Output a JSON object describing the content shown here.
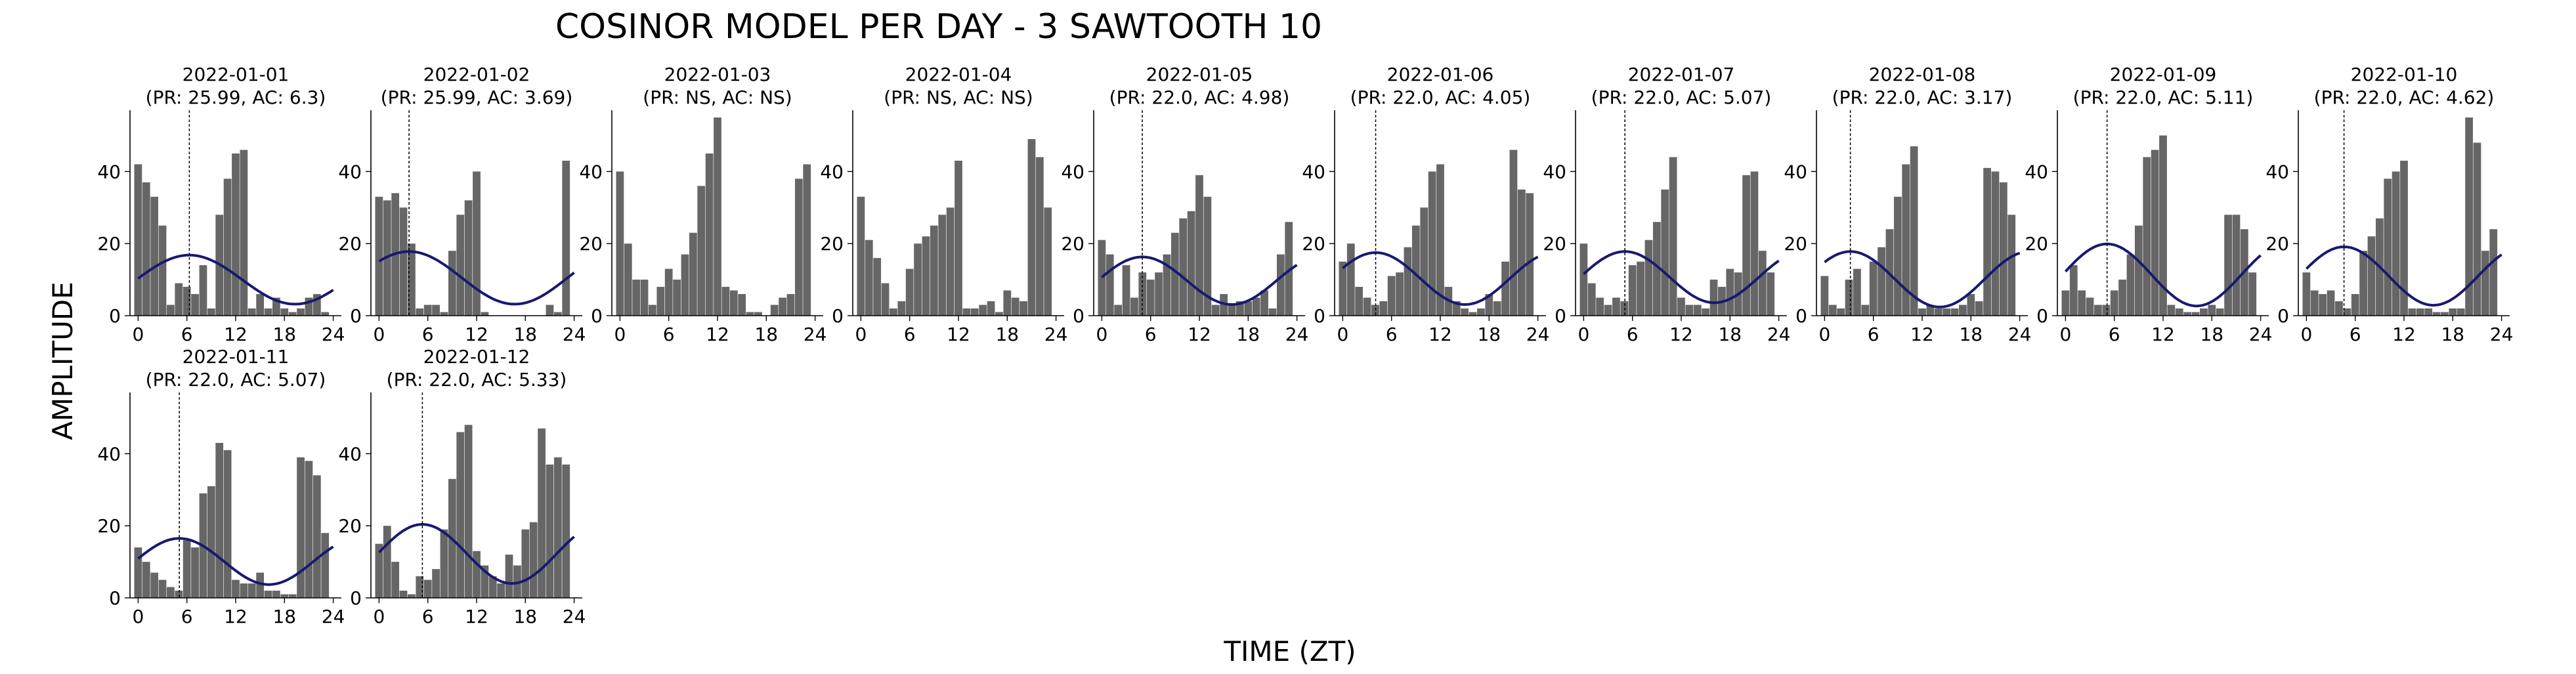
{
  "figure": {
    "title": "COSINOR MODEL PER DAY - 3 SAWTOOTH 10",
    "xlabel": "TIME (ZT)",
    "ylabel": "AMPLITUDE"
  },
  "colors": {
    "bars": "#666666",
    "curve": "#191970",
    "acrophase_line": "#000000",
    "axis": "#000000"
  },
  "axes_common": {
    "xlim": [
      -1,
      25
    ],
    "ylim": [
      0,
      57
    ],
    "xticks": [
      0,
      6,
      12,
      18,
      24
    ],
    "yticks": [
      0,
      20,
      40
    ],
    "grid": false
  },
  "chart_data": [
    {
      "type": "bar",
      "title": "2022-01-01",
      "subtitle": "(PR: 25.99, AC: 6.3)",
      "period": 25.99,
      "acrophase": 6.3,
      "mesor": 10,
      "amplitude": 6.8,
      "values": [
        42,
        37,
        33,
        25,
        3,
        9,
        8,
        6,
        14,
        2,
        28,
        38,
        45,
        46,
        2,
        6,
        2,
        5,
        2,
        1,
        2,
        5,
        6,
        1
      ]
    },
    {
      "type": "bar",
      "title": "2022-01-02",
      "subtitle": "(PR: 25.99, AC: 3.69)",
      "period": 25.99,
      "acrophase": 3.69,
      "mesor": 10.5,
      "amplitude": 7.3,
      "values": [
        33,
        32,
        34,
        30,
        20,
        2,
        3,
        3,
        1,
        18,
        28,
        32,
        40,
        1,
        0,
        0,
        0,
        0,
        0,
        0,
        0,
        3,
        1,
        43
      ]
    },
    {
      "type": "bar",
      "title": "2022-01-03",
      "subtitle": "(PR: NS, AC: NS)",
      "period": null,
      "acrophase": null,
      "values": [
        40,
        20,
        10,
        10,
        3,
        8,
        13,
        10,
        17,
        23,
        36,
        45,
        55,
        8,
        7,
        6,
        1,
        1,
        0,
        3,
        5,
        6,
        38,
        42
      ]
    },
    {
      "type": "bar",
      "title": "2022-01-04",
      "subtitle": "(PR: NS, AC: NS)",
      "period": null,
      "acrophase": null,
      "values": [
        33,
        21,
        16,
        9,
        2,
        4,
        13,
        20,
        22,
        25,
        28,
        30,
        43,
        2,
        2,
        3,
        4,
        1,
        7,
        5,
        4,
        49,
        44,
        30
      ]
    },
    {
      "type": "bar",
      "title": "2022-01-05",
      "subtitle": "(PR: 22.0, AC: 4.98)",
      "period": 22.0,
      "acrophase": 4.98,
      "mesor": 9.7,
      "amplitude": 6.6,
      "values": [
        21,
        17,
        3,
        14,
        5,
        12,
        10,
        12,
        17,
        23,
        27,
        29,
        39,
        33,
        3,
        6,
        3,
        4,
        4,
        5,
        7,
        2,
        17,
        26
      ]
    },
    {
      "type": "bar",
      "title": "2022-01-06",
      "subtitle": "(PR: 22.0, AC: 4.05)",
      "period": 22.0,
      "acrophase": 4.05,
      "mesor": 10.3,
      "amplitude": 7.2,
      "values": [
        15,
        20,
        8,
        5,
        3,
        4,
        11,
        12,
        19,
        25,
        30,
        40,
        42,
        8,
        4,
        2,
        1,
        2,
        6,
        4,
        15,
        46,
        35,
        34
      ]
    },
    {
      "type": "bar",
      "title": "2022-01-07",
      "subtitle": "(PR: 22.0, AC: 5.07)",
      "period": 22.0,
      "acrophase": 5.07,
      "mesor": 10.7,
      "amplitude": 7.1,
      "values": [
        20,
        9,
        5,
        3,
        5,
        4,
        14,
        15,
        21,
        26,
        35,
        44,
        5,
        3,
        3,
        2,
        10,
        8,
        13,
        12,
        39,
        40,
        18,
        12
      ]
    },
    {
      "type": "bar",
      "title": "2022-01-08",
      "subtitle": "(PR: 22.0, AC: 3.17)",
      "period": 22.0,
      "acrophase": 3.17,
      "mesor": 10.1,
      "amplitude": 7.7,
      "values": [
        11,
        3,
        2,
        10,
        13,
        3,
        15,
        19,
        24,
        33,
        42,
        47,
        2,
        3,
        2,
        2,
        2,
        3,
        6,
        4,
        41,
        40,
        37,
        28
      ]
    },
    {
      "type": "bar",
      "title": "2022-01-09",
      "subtitle": "(PR: 22.0, AC: 5.11)",
      "period": 22.0,
      "acrophase": 5.11,
      "mesor": 11.3,
      "amplitude": 8.6,
      "values": [
        7,
        14,
        7,
        5,
        3,
        3,
        7,
        10,
        17,
        25,
        44,
        46,
        50,
        3,
        2,
        1,
        1,
        2,
        3,
        2,
        28,
        28,
        24,
        12
      ]
    },
    {
      "type": "bar",
      "title": "2022-01-10",
      "subtitle": "(PR: 22.0, AC: 4.62)",
      "period": 22.0,
      "acrophase": 4.62,
      "mesor": 11,
      "amplitude": 8.1,
      "values": [
        12,
        7,
        6,
        7,
        4,
        2,
        6,
        18,
        22,
        27,
        38,
        40,
        43,
        2,
        2,
        2,
        1,
        1,
        2,
        2,
        55,
        48,
        18,
        24
      ]
    },
    {
      "type": "bar",
      "title": "2022-01-11",
      "subtitle": "(PR: 22.0, AC: 5.07)",
      "period": 22.0,
      "acrophase": 5.07,
      "mesor": 10.1,
      "amplitude": 6.4,
      "values": [
        14,
        10,
        7,
        5,
        3,
        2,
        16,
        14,
        29,
        31,
        43,
        41,
        5,
        4,
        4,
        7,
        2,
        2,
        1,
        1,
        39,
        38,
        34,
        18
      ]
    },
    {
      "type": "bar",
      "title": "2022-01-12",
      "subtitle": "(PR: 22.0, AC: 5.33)",
      "period": 22.0,
      "acrophase": 5.33,
      "mesor": 12.2,
      "amplitude": 8.2,
      "values": [
        15,
        20,
        10,
        2,
        1,
        6,
        5,
        8,
        19,
        33,
        46,
        48,
        13,
        9,
        6,
        4,
        12,
        9,
        19,
        21,
        47,
        37,
        39,
        37
      ]
    }
  ]
}
